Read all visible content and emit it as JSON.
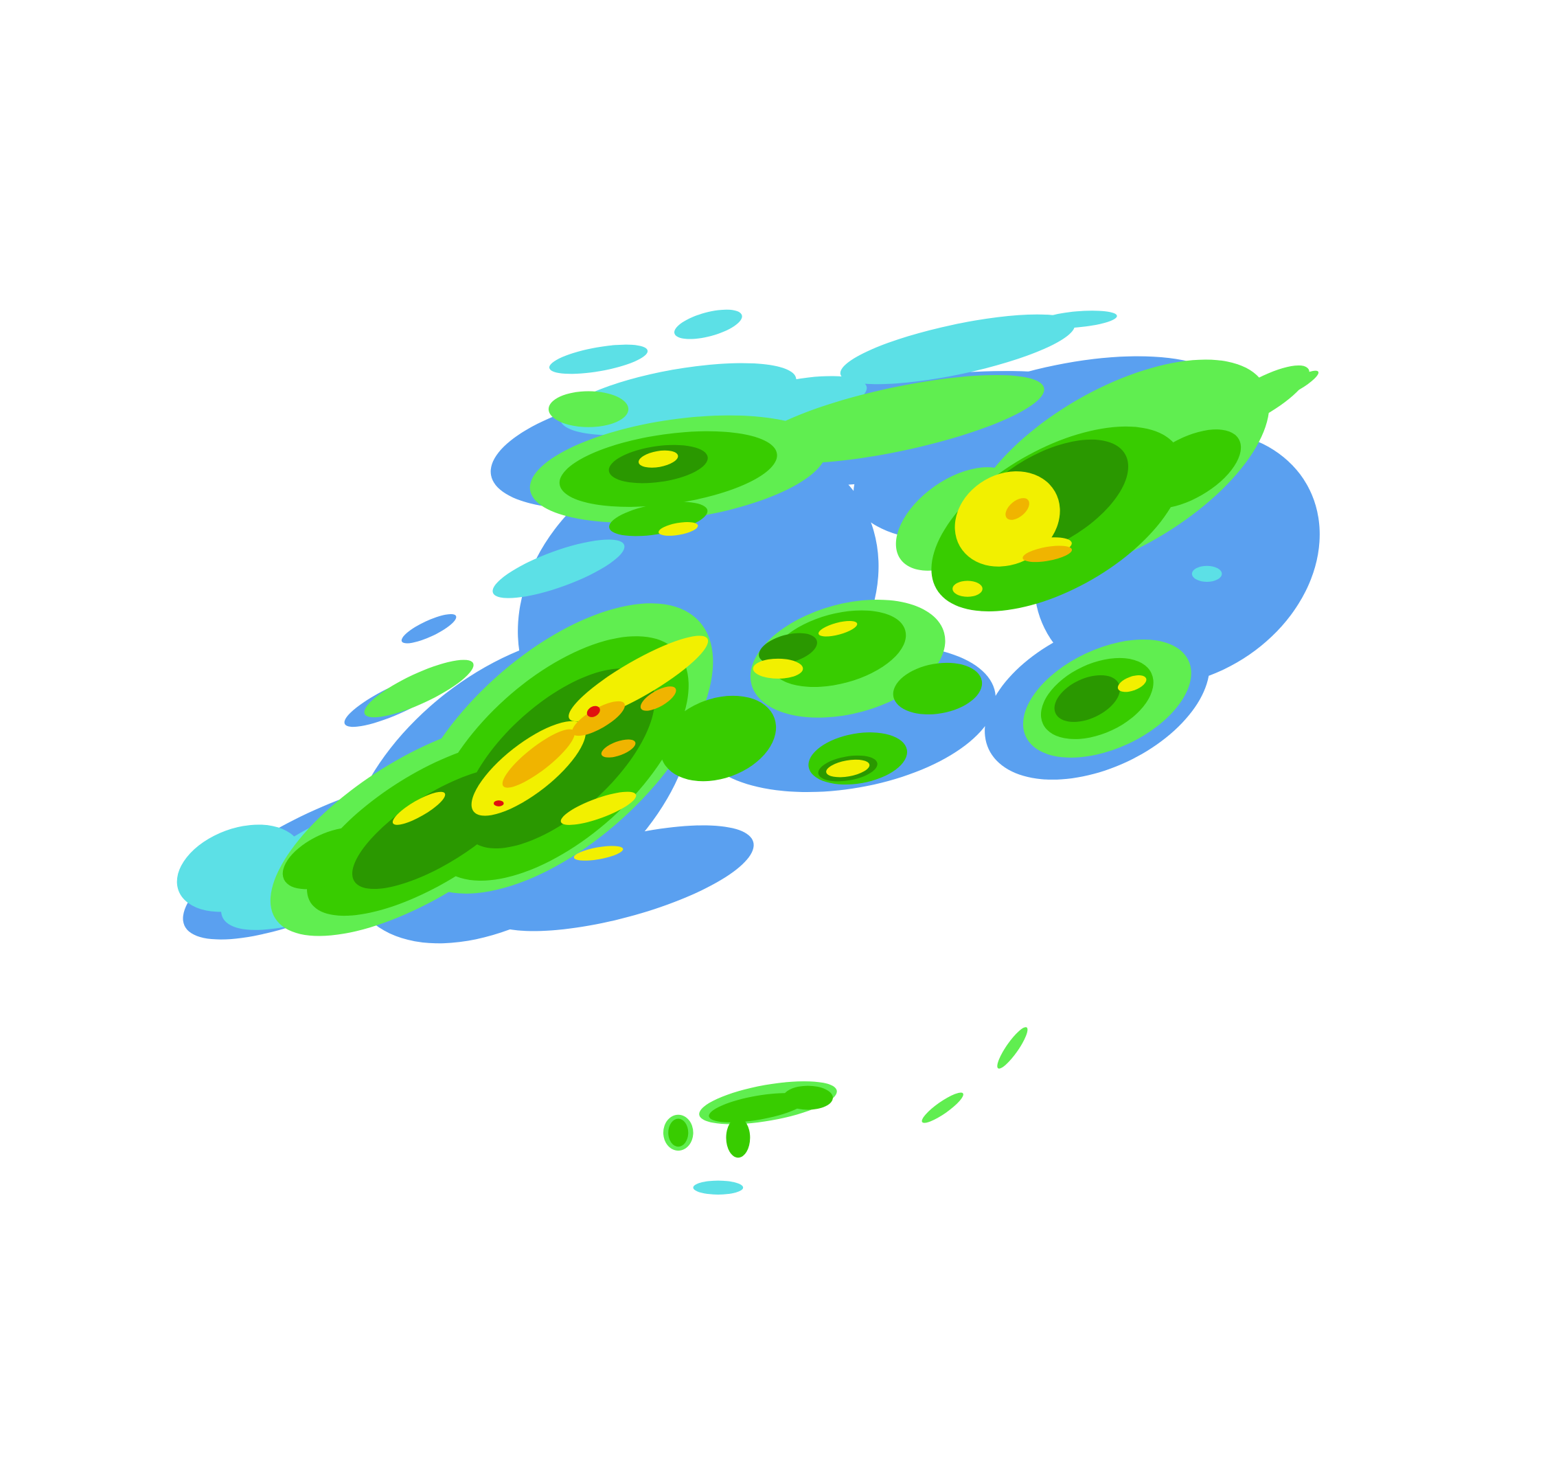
{
  "radar": {
    "colors": {
      "background": "#ffffff",
      "light_blue": "#5aa0f0",
      "cyan": "#5ce0e6",
      "light_green": "#60ee50",
      "green": "#38cc00",
      "dark_green": "#2a9800",
      "yellow": "#f2f000",
      "orange": "#f0b400",
      "red": "#e01010"
    }
  }
}
